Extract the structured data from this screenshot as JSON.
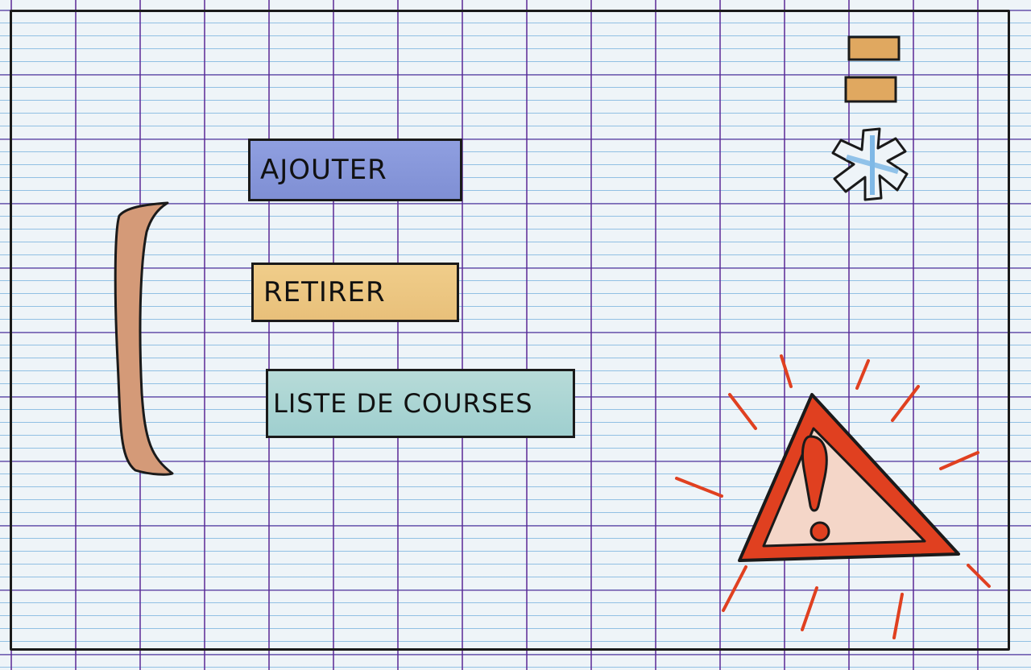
{
  "buttons": {
    "add_label": "AJOUTER",
    "remove_label": "RETIRER",
    "list_label": "LISTE DE COURSES"
  },
  "icons": {
    "menu": "menu-icon",
    "settings": "asterisk-icon",
    "warning": "warning-icon",
    "scrollbar": "scrollbar"
  },
  "colors": {
    "add_button": "#8f9fe0",
    "remove_button": "#f0cd8a",
    "list_button": "#b7dbd8",
    "menu_bars": "#e0a860",
    "asterisk": "#7fb8e6",
    "warning": "#e04020",
    "scrollbar": "#d49a78"
  }
}
